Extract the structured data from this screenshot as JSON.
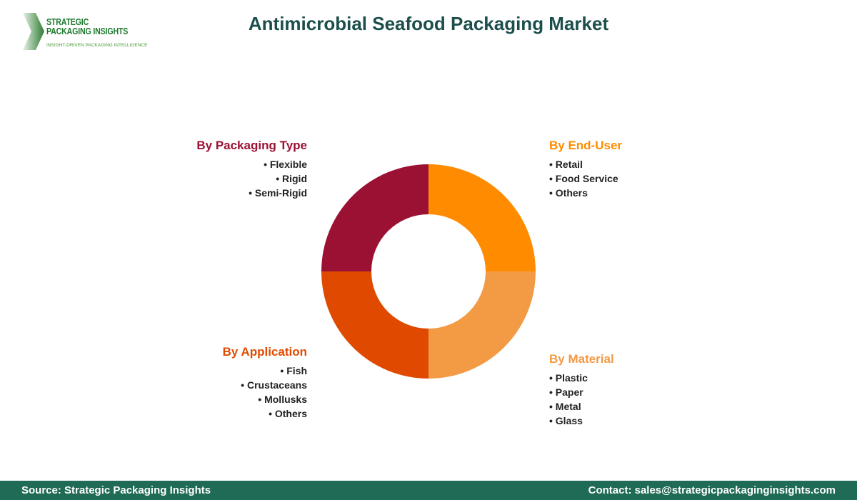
{
  "title": "Antimicrobial Seafood Packaging Market",
  "logo": {
    "line1": "STRATEGIC",
    "line2": "PACKAGING INSIGHTS",
    "tagline": "INSIGHT-DRIVEN PACKAGING INTELLIGENCE"
  },
  "segments": [
    {
      "title": "By Packaging Type",
      "color": "#9b1133",
      "items": [
        "Flexible",
        "Rigid",
        "Semi-Rigid"
      ]
    },
    {
      "title": "By End-User",
      "color": "#ff8c00",
      "items": [
        "Retail",
        "Food Service",
        "Others"
      ]
    },
    {
      "title": "By Application",
      "color": "#e04a00",
      "items": [
        "Fish",
        "Crustaceans",
        "Mollusks",
        "Others"
      ]
    },
    {
      "title": "By Material",
      "color": "#f39a45",
      "items": [
        "Plastic",
        "Paper",
        "Metal",
        "Glass"
      ]
    }
  ],
  "footer": {
    "source": "Source: Strategic Packaging Insights",
    "contact": "Contact: sales@strategicpackaginginsights.com"
  }
}
